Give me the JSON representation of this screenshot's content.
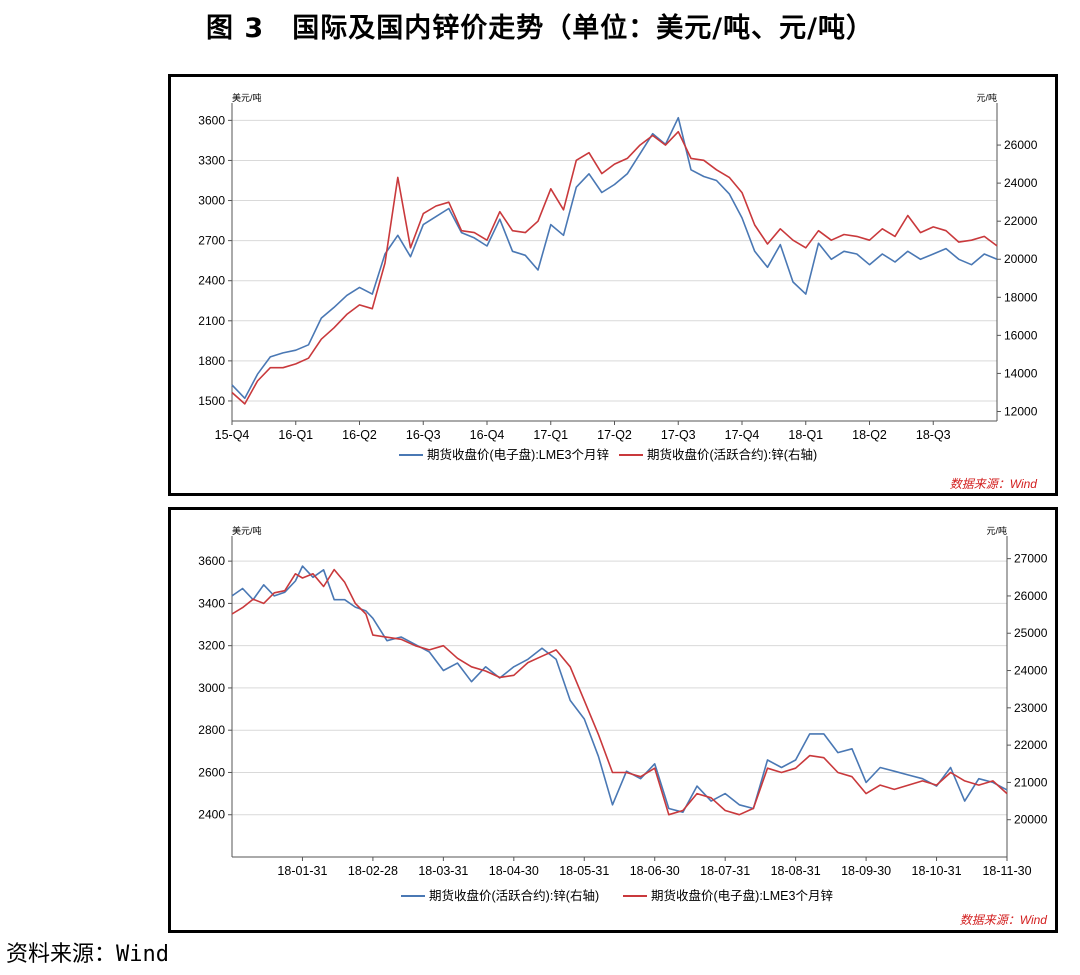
{
  "figure_title": "图 3　国际及国内锌价走势（单位：美元/吨、元/吨）",
  "footer_source": "资料来源：Wind",
  "colors": {
    "blue": "#4a78b4",
    "red": "#c9393c",
    "source_red": "#d32020"
  },
  "chart_data": [
    {
      "type": "line",
      "left_unit": "美元/吨",
      "right_unit": "元/吨",
      "ylim_left": [
        1350,
        3700
      ],
      "ylim_right": [
        11500,
        28000
      ],
      "yticks_left": [
        1500,
        1800,
        2100,
        2400,
        2700,
        3000,
        3300,
        3600
      ],
      "yticks_right": [
        12000,
        14000,
        16000,
        18000,
        20000,
        22000,
        24000,
        26000
      ],
      "x_tick_labels": [
        "15-Q4",
        "16-Q1",
        "16-Q2",
        "16-Q3",
        "16-Q4",
        "17-Q1",
        "17-Q2",
        "17-Q3",
        "17-Q4",
        "18-Q1",
        "18-Q2",
        "18-Q3"
      ],
      "legend": [
        "期货收盘价(电子盘):LME3个月锌",
        "期货收盘价(活跃合约):锌(右轴)"
      ],
      "source": "数据来源：Wind",
      "grid": true,
      "series": [
        {
          "name": "期货收盘价(电子盘):LME3个月锌",
          "axis": "left",
          "color": "blue",
          "x": [
            0,
            0.2,
            0.4,
            0.6,
            0.8,
            1.0,
            1.2,
            1.4,
            1.6,
            1.8,
            2.0,
            2.2,
            2.4,
            2.6,
            2.8,
            3.0,
            3.2,
            3.4,
            3.6,
            3.8,
            4.0,
            4.2,
            4.4,
            4.6,
            4.8,
            5.0,
            5.2,
            5.4,
            5.6,
            5.8,
            6.0,
            6.2,
            6.4,
            6.6,
            6.8,
            7.0,
            7.2,
            7.4,
            7.6,
            7.8,
            8.0,
            8.2,
            8.4,
            8.6,
            8.8,
            9.0,
            9.2,
            9.4,
            9.6,
            9.8,
            10.0,
            10.2,
            10.4,
            10.6,
            10.8,
            11.0,
            11.2,
            11.4,
            11.6,
            11.8,
            12.0
          ],
          "y": [
            1620,
            1520,
            1700,
            1830,
            1860,
            1880,
            1920,
            2120,
            2200,
            2290,
            2350,
            2300,
            2600,
            2740,
            2580,
            2820,
            2880,
            2940,
            2760,
            2720,
            2660,
            2860,
            2620,
            2590,
            2480,
            2820,
            2740,
            3100,
            3200,
            3060,
            3120,
            3200,
            3350,
            3500,
            3420,
            3620,
            3230,
            3180,
            3150,
            3050,
            2870,
            2620,
            2500,
            2670,
            2390,
            2300,
            2680,
            2560,
            2620,
            2600,
            2520,
            2600,
            2540,
            2620,
            2560,
            2600,
            2640,
            2560,
            2520,
            2600,
            2560
          ]
        },
        {
          "name": "期货收盘价(活跃合约):锌(右轴)",
          "axis": "right",
          "color": "red",
          "x": [
            0,
            0.2,
            0.4,
            0.6,
            0.8,
            1.0,
            1.2,
            1.4,
            1.6,
            1.8,
            2.0,
            2.2,
            2.4,
            2.6,
            2.8,
            3.0,
            3.2,
            3.4,
            3.6,
            3.8,
            4.0,
            4.2,
            4.4,
            4.6,
            4.8,
            5.0,
            5.2,
            5.4,
            5.6,
            5.8,
            6.0,
            6.2,
            6.4,
            6.6,
            6.8,
            7.0,
            7.2,
            7.4,
            7.6,
            7.8,
            8.0,
            8.2,
            8.4,
            8.6,
            8.8,
            9.0,
            9.2,
            9.4,
            9.6,
            9.8,
            10.0,
            10.2,
            10.4,
            10.6,
            10.8,
            11.0,
            11.2,
            11.4,
            11.6,
            11.8,
            12.0
          ],
          "y": [
            13000,
            12400,
            13600,
            14300,
            14300,
            14500,
            14800,
            15800,
            16400,
            17100,
            17600,
            17400,
            19800,
            24300,
            20600,
            22400,
            22800,
            23000,
            21500,
            21400,
            21000,
            22500,
            21500,
            21400,
            22000,
            23700,
            22600,
            25200,
            25600,
            24500,
            25000,
            25300,
            26000,
            26500,
            26000,
            26700,
            25300,
            25200,
            24700,
            24300,
            23500,
            21800,
            20800,
            21600,
            21000,
            20600,
            21500,
            21000,
            21300,
            21200,
            21000,
            21600,
            21200,
            22300,
            21400,
            21700,
            21500,
            20900,
            21000,
            21200,
            20700
          ]
        }
      ]
    },
    {
      "type": "line",
      "left_unit": "美元/吨",
      "right_unit": "元/吨",
      "ylim_left": [
        2200,
        3700
      ],
      "ylim_right": [
        19000,
        27500
      ],
      "yticks_left": [
        2400,
        2600,
        2800,
        3000,
        3200,
        3400,
        3600
      ],
      "yticks_right": [
        20000,
        21000,
        22000,
        23000,
        24000,
        25000,
        26000,
        27000
      ],
      "x_tick_labels": [
        "18-01-31",
        "18-02-28",
        "18-03-31",
        "18-04-30",
        "18-05-31",
        "18-06-30",
        "18-07-31",
        "18-08-31",
        "18-09-30",
        "18-10-31",
        "18-11-30"
      ],
      "legend": [
        "期货收盘价(活跃合约):锌(右轴)",
        "期货收盘价(电子盘):LME3个月锌"
      ],
      "source": "数据来源：Wind",
      "grid": true,
      "series": [
        {
          "name": "期货收盘价(活跃合约):锌(右轴)",
          "axis": "right",
          "color": "blue",
          "x": [
            0,
            0.15,
            0.3,
            0.45,
            0.6,
            0.75,
            0.9,
            1.0,
            1.15,
            1.3,
            1.45,
            1.6,
            1.75,
            1.9,
            2.0,
            2.2,
            2.4,
            2.6,
            2.8,
            3.0,
            3.2,
            3.4,
            3.6,
            3.8,
            4.0,
            4.2,
            4.4,
            4.6,
            4.8,
            5.0,
            5.2,
            5.4,
            5.6,
            5.8,
            6.0,
            6.2,
            6.4,
            6.6,
            6.8,
            7.0,
            7.2,
            7.4,
            7.6,
            7.8,
            8.0,
            8.2,
            8.4,
            8.6,
            8.8,
            9.0,
            9.2,
            9.4,
            9.6,
            9.8,
            10.0,
            10.2,
            10.4,
            10.6,
            10.8,
            11.0
          ],
          "y": [
            26000,
            26200,
            25900,
            26300,
            26000,
            26100,
            26400,
            26800,
            26500,
            26700,
            25900,
            25900,
            25700,
            25600,
            25400,
            24800,
            24900,
            24700,
            24500,
            24000,
            24200,
            23700,
            24100,
            23800,
            24100,
            24300,
            24600,
            24300,
            23200,
            22700,
            21700,
            20400,
            21300,
            21100,
            21500,
            20300,
            20200,
            20900,
            20500,
            20700,
            20400,
            20300,
            21600,
            21400,
            21600,
            22300,
            22300,
            21800,
            21900,
            21000,
            21400,
            21300,
            21200,
            21100,
            20900,
            21400,
            20500,
            21100,
            21000,
            20800
          ]
        },
        {
          "name": "期货收盘价(电子盘):LME3个月锌",
          "axis": "left",
          "color": "red",
          "x": [
            0,
            0.15,
            0.3,
            0.45,
            0.6,
            0.75,
            0.9,
            1.0,
            1.15,
            1.3,
            1.45,
            1.6,
            1.75,
            1.9,
            2.0,
            2.2,
            2.4,
            2.6,
            2.8,
            3.0,
            3.2,
            3.4,
            3.6,
            3.8,
            4.0,
            4.2,
            4.4,
            4.6,
            4.8,
            5.0,
            5.2,
            5.4,
            5.6,
            5.8,
            6.0,
            6.2,
            6.4,
            6.6,
            6.8,
            7.0,
            7.2,
            7.4,
            7.6,
            7.8,
            8.0,
            8.2,
            8.4,
            8.6,
            8.8,
            9.0,
            9.2,
            9.4,
            9.6,
            9.8,
            10.0,
            10.2,
            10.4,
            10.6,
            10.8,
            11.0
          ],
          "y": [
            3350,
            3380,
            3420,
            3400,
            3450,
            3460,
            3540,
            3520,
            3540,
            3480,
            3560,
            3500,
            3400,
            3350,
            3250,
            3240,
            3230,
            3200,
            3180,
            3200,
            3140,
            3100,
            3080,
            3050,
            3060,
            3120,
            3150,
            3180,
            3100,
            2940,
            2780,
            2600,
            2600,
            2580,
            2620,
            2400,
            2420,
            2500,
            2480,
            2420,
            2400,
            2430,
            2620,
            2600,
            2620,
            2680,
            2670,
            2600,
            2580,
            2500,
            2540,
            2520,
            2540,
            2560,
            2540,
            2600,
            2560,
            2540,
            2560,
            2500
          ]
        }
      ]
    }
  ]
}
